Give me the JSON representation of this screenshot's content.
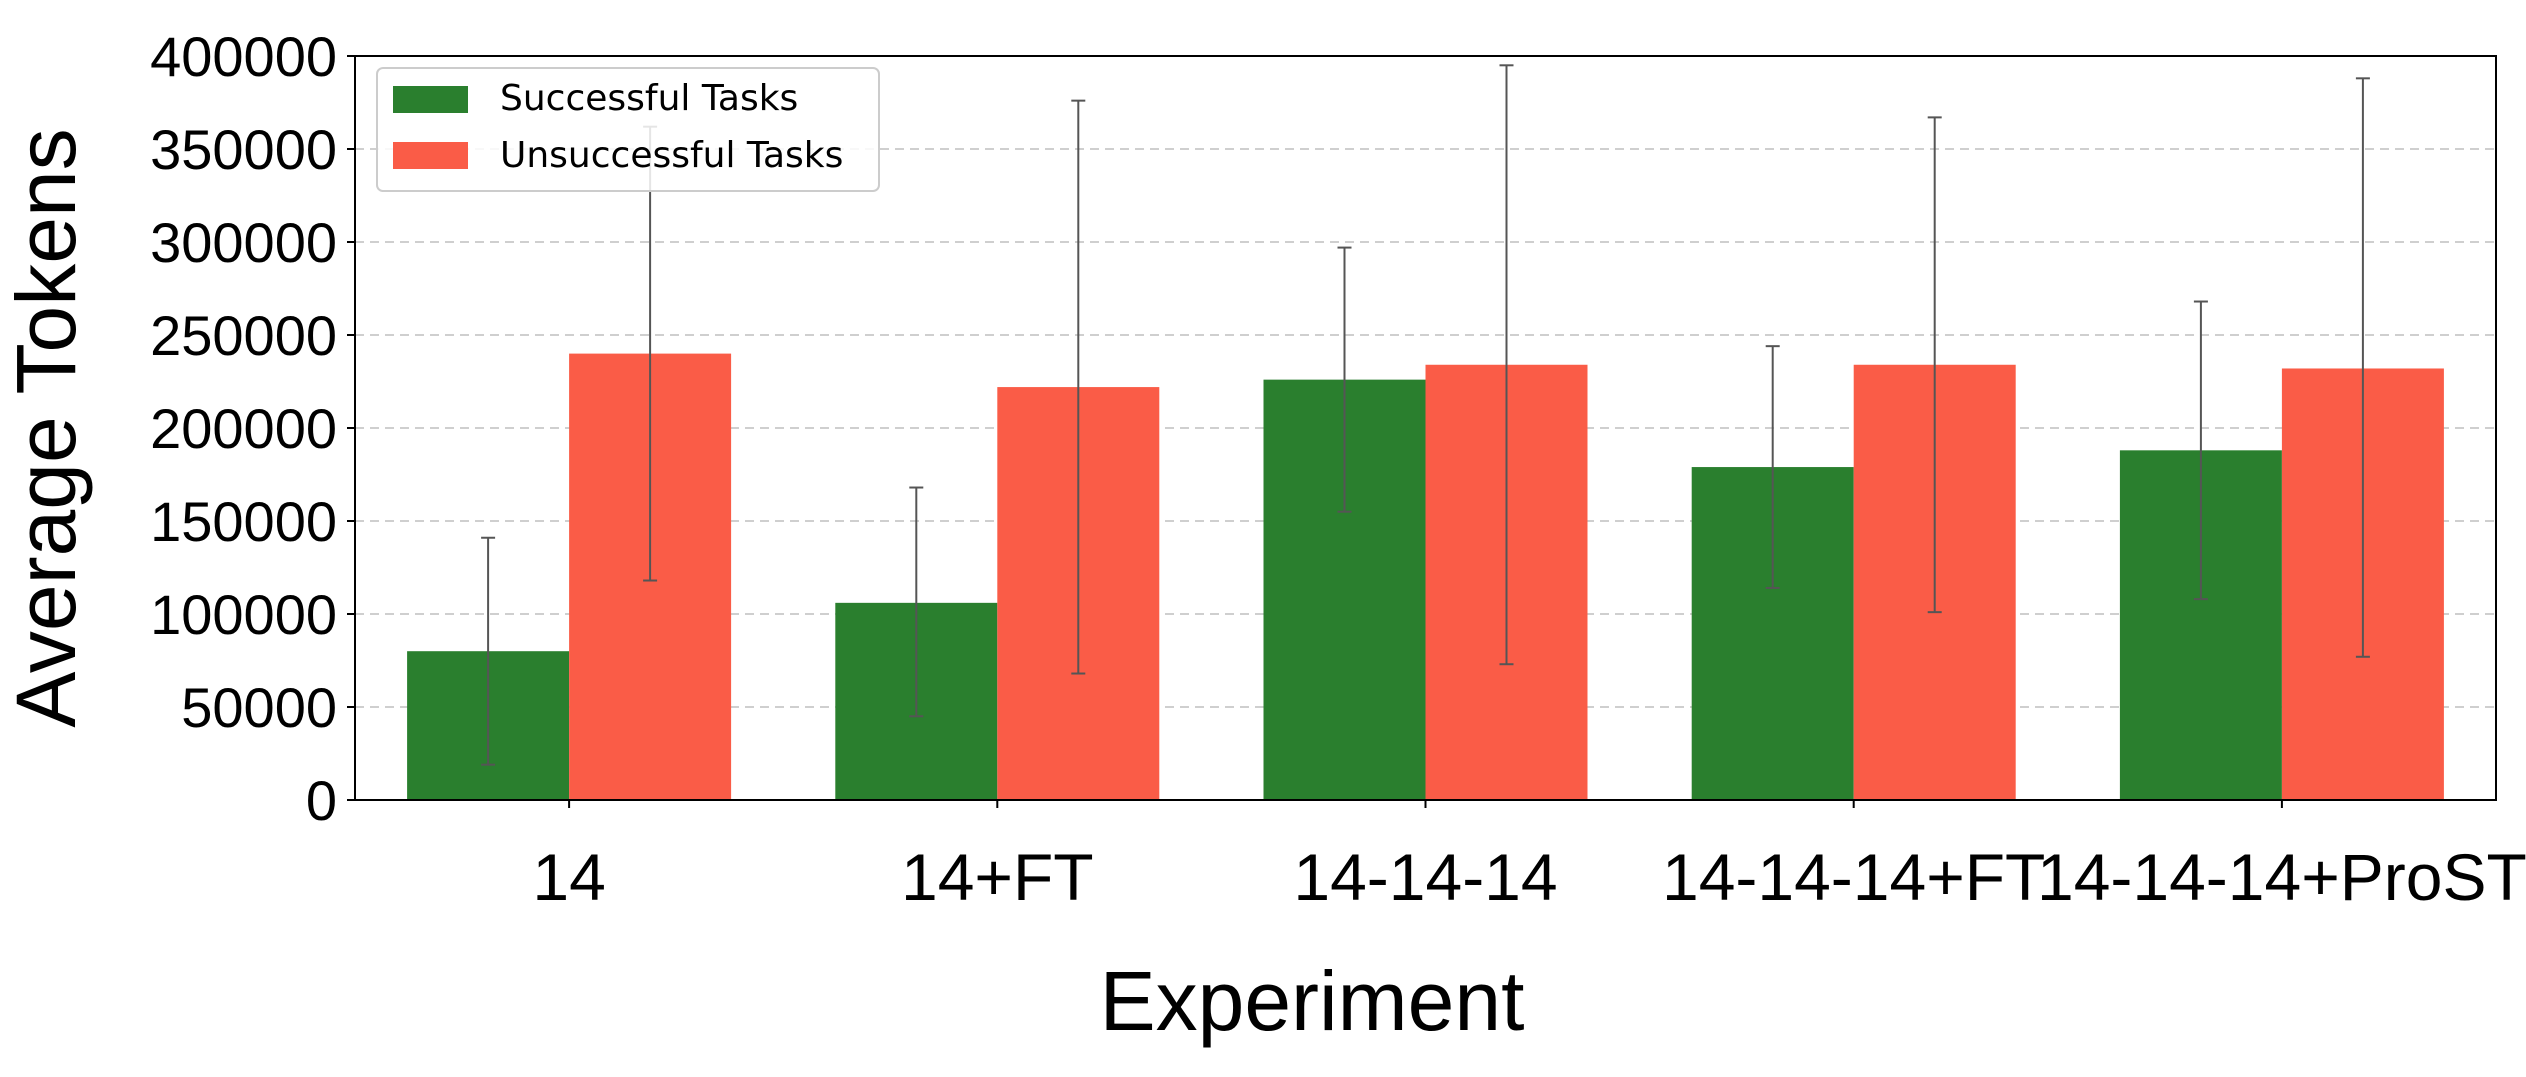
{
  "chart_data": {
    "type": "bar",
    "title": "",
    "xlabel": "Experiment",
    "ylabel": "Average Tokens",
    "categories": [
      "14",
      "14+FT",
      "14-14-14",
      "14-14-14+FT",
      "14-14-14+ProST"
    ],
    "ylim": [
      0,
      400000
    ],
    "yticks": [
      0,
      50000,
      100000,
      150000,
      200000,
      250000,
      300000,
      350000,
      400000
    ],
    "ytick_labels": [
      "0",
      "50000",
      "100000",
      "150000",
      "200000",
      "250000",
      "300000",
      "350000",
      "400000"
    ],
    "grid": "horizontal dashed",
    "legend_position": "top-left",
    "series": [
      {
        "name": "Successful Tasks",
        "color": "#2a7f2e",
        "values": [
          80000,
          106000,
          226000,
          179000,
          188000
        ],
        "error_low": [
          19000,
          45000,
          155000,
          114000,
          108000
        ],
        "error_high": [
          141000,
          168000,
          297000,
          244000,
          268000
        ]
      },
      {
        "name": "Unsuccessful Tasks",
        "color": "#fa5c47",
        "values": [
          240000,
          222000,
          234000,
          234000,
          232000
        ],
        "error_low": [
          118000,
          68000,
          73000,
          101000,
          77000
        ],
        "error_high": [
          362000,
          376000,
          395000,
          367000,
          388000
        ]
      }
    ]
  }
}
